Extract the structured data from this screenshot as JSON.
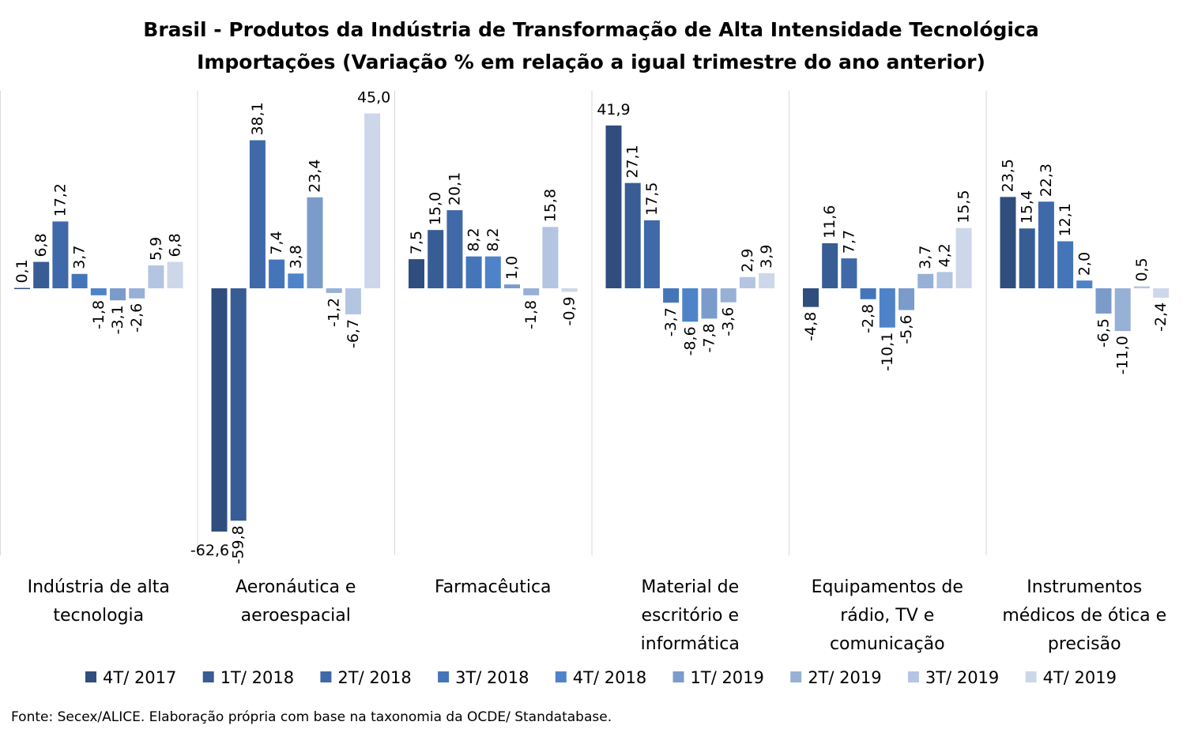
{
  "chart_data": {
    "type": "bar",
    "title": "Brasil - Produtos da Indústria de Transformação de Alta Intensidade Tecnológica",
    "subtitle": "Importações (Variação % em relação a igual trimestre do ano anterior)",
    "categories": [
      [
        "Indústria de alta",
        "tecnologia"
      ],
      [
        "Aeronáutica e",
        "aeroespacial"
      ],
      [
        "Farmacêutica"
      ],
      [
        "Material de",
        "escritório e",
        "informática"
      ],
      [
        "Equipamentos de",
        "rádio, TV e",
        "comunicação"
      ],
      [
        "Instrumentos",
        "médicos de ótica e",
        "precisão"
      ]
    ],
    "ylim": [
      -67,
      50
    ],
    "legend_position": "bottom",
    "series": [
      {
        "name": "4T/ 2017",
        "color": "#2f4e7d",
        "values": [
          0.1,
          -62.6,
          7.5,
          41.9,
          -4.8,
          23.5
        ],
        "labels": [
          "0,1",
          "-62,6",
          "7,5",
          "41,9",
          "-4,8",
          "23,5"
        ]
      },
      {
        "name": "1T/ 2018",
        "color": "#385d94",
        "values": [
          6.8,
          -59.8,
          15.0,
          27.1,
          11.6,
          15.4
        ],
        "labels": [
          "6,8",
          "-59,8",
          "15,0",
          "27,1",
          "11,6",
          "15,4"
        ]
      },
      {
        "name": "2T/ 2018",
        "color": "#3f69a8",
        "values": [
          17.2,
          38.1,
          20.1,
          17.5,
          7.7,
          22.3
        ],
        "labels": [
          "17,2",
          "38,1",
          "20,1",
          "17,5",
          "7,7",
          "22,3"
        ]
      },
      {
        "name": "3T/ 2018",
        "color": "#4575b9",
        "values": [
          3.7,
          7.4,
          8.2,
          -3.7,
          -2.8,
          12.1
        ],
        "labels": [
          "3,7",
          "7,4",
          "8,2",
          "-3,7",
          "-2,8",
          "12,1"
        ]
      },
      {
        "name": "4T/ 2018",
        "color": "#4f83c9",
        "values": [
          -1.8,
          3.8,
          8.2,
          -8.6,
          -10.1,
          2.0
        ],
        "labels": [
          "-1,8",
          "3,8",
          "8,2",
          "-8,6",
          "-10,1",
          "2,0"
        ]
      },
      {
        "name": "1T/ 2019",
        "color": "#7b9ccb",
        "values": [
          -3.1,
          23.4,
          1.0,
          -7.8,
          -5.6,
          -6.5
        ],
        "labels": [
          "-3,1",
          "23,4",
          "1,0",
          "-7,8",
          "-5,6",
          "-6,5"
        ]
      },
      {
        "name": "2T/ 2019",
        "color": "#97b0d6",
        "values": [
          -2.6,
          -1.2,
          -1.8,
          -3.6,
          3.7,
          -11.0
        ],
        "labels": [
          "-2,6",
          "-1,2",
          "-1,8",
          "-3,6",
          "3,7",
          "-11,0"
        ]
      },
      {
        "name": "3T/ 2019",
        "color": "#b4c5e2",
        "values": [
          5.9,
          -6.7,
          15.8,
          2.9,
          4.2,
          0.5
        ],
        "labels": [
          "5,9",
          "-6,7",
          "15,8",
          "2,9",
          "4,2",
          "0,5"
        ]
      },
      {
        "name": "4T/ 2019",
        "color": "#cdd7ea",
        "values": [
          6.8,
          45.0,
          -0.9,
          3.9,
          15.5,
          -2.4
        ],
        "labels": [
          "6,8",
          "45,0",
          "-0,9",
          "3,9",
          "15,5",
          "-2,4"
        ]
      }
    ]
  },
  "source": "Fonte: Secex/ALICE. Elaboração própria com base na taxonomia da OCDE/ Standatabase."
}
